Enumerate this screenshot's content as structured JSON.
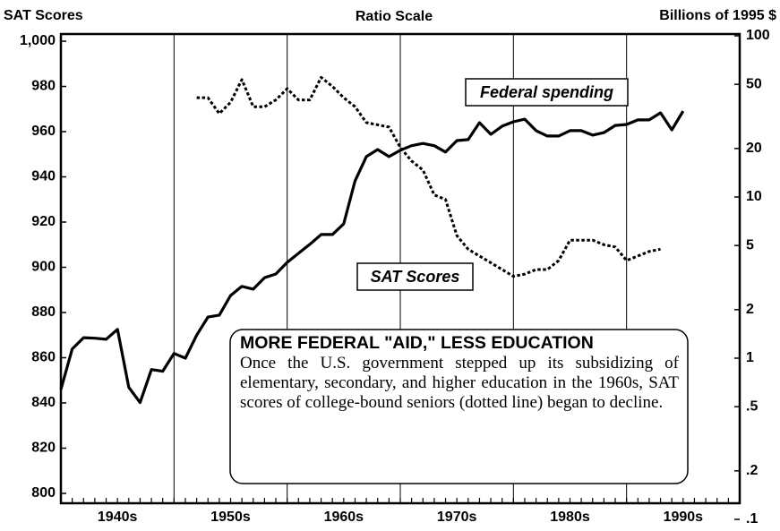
{
  "chart_data": {
    "type": "line",
    "left_axis_label": "SAT Scores",
    "subtitle": "Ratio Scale",
    "right_axis_label": "Billions of 1995 $",
    "xlim": [
      1940,
      2000
    ],
    "xticks": [
      {
        "value": 1940,
        "label": "1940s"
      },
      {
        "value": 1950,
        "label": "1950s"
      },
      {
        "value": 1960,
        "label": "1960s"
      },
      {
        "value": 1970,
        "label": "1970s"
      },
      {
        "value": 1980,
        "label": "1980s"
      },
      {
        "value": 1990,
        "label": "1990s"
      }
    ],
    "ylim": [
      800,
      1000
    ],
    "yticks": [
      800,
      820,
      840,
      860,
      880,
      900,
      920,
      940,
      960,
      980,
      {
        "value": 1000,
        "label": "1,000"
      }
    ],
    "y2lim": [
      0.1,
      100
    ],
    "y2log": true,
    "y2ticks": [
      {
        "value": 0.1,
        "label": ".1"
      },
      {
        "value": 0.2,
        "label": ".2"
      },
      {
        "value": 0.5,
        "label": ".5"
      },
      1,
      2,
      5,
      10,
      20,
      50,
      100
    ],
    "grid": "x",
    "series": [
      {
        "name": "SAT Scores",
        "color": "#000000",
        "dash": true,
        "x": [
          1952,
          1953,
          1954,
          1955,
          1956,
          1957,
          1958,
          1959,
          1960,
          1961,
          1962,
          1963,
          1964,
          1965,
          1966,
          1967,
          1968,
          1969,
          1970,
          1971,
          1972,
          1973,
          1974,
          1975,
          1976,
          1977,
          1978,
          1979,
          1980,
          1981,
          1982,
          1983,
          1984,
          1985,
          1986,
          1987,
          1988,
          1989,
          1990,
          1991,
          1992,
          1993
        ],
        "values": [
          975,
          975,
          968,
          973,
          983,
          971,
          971,
          974,
          979,
          974,
          974,
          984,
          980,
          975,
          971,
          964,
          963,
          962,
          953,
          947,
          943,
          932,
          930,
          914,
          908,
          905,
          902,
          899,
          896,
          897,
          899,
          899,
          903,
          912,
          912,
          912,
          910,
          909,
          903,
          905,
          907,
          908
        ]
      },
      {
        "name": "Federal spending",
        "color": "#000000",
        "axis": "y2",
        "x": [
          1940,
          1941,
          1942,
          1943,
          1944,
          1945,
          1946,
          1947,
          1948,
          1949,
          1950,
          1951,
          1952,
          1953,
          1954,
          1955,
          1956,
          1957,
          1958,
          1959,
          1960,
          1961,
          1962,
          1963,
          1964,
          1965,
          1966,
          1967,
          1968,
          1969,
          1970,
          1971,
          1972,
          1973,
          1974,
          1975,
          1976,
          1977,
          1978,
          1979,
          1980,
          1981,
          1982,
          1983,
          1984,
          1985,
          1986,
          1987,
          1988,
          1989,
          1990,
          1991,
          1992,
          1993,
          1994,
          1995
        ],
        "values": [
          0.64,
          1.14,
          1.34,
          1.33,
          1.31,
          1.51,
          0.66,
          0.53,
          0.85,
          0.83,
          1.07,
          1.0,
          1.39,
          1.8,
          1.85,
          2.45,
          2.79,
          2.68,
          3.16,
          3.33,
          3.93,
          4.47,
          5.08,
          5.85,
          5.85,
          6.81,
          12.6,
          17.8,
          19.7,
          17.8,
          19.5,
          20.8,
          21.5,
          20.8,
          19.0,
          22.4,
          22.7,
          28.9,
          24.5,
          27.5,
          29.3,
          30.4,
          25.8,
          23.9,
          23.9,
          25.8,
          25.8,
          24.2,
          25.1,
          27.8,
          28.2,
          30.1,
          30.1,
          33.3,
          26.1,
          34.1
        ]
      }
    ],
    "annotation": {
      "title": "MORE FEDERAL \"AID,\" LESS EDUCATION",
      "text": "Once the U.S. government stepped up its subsidizing of elementary, secondary, and higher education in the 1960s, SAT scores of college-bound seniors (dotted line) began to decline."
    }
  }
}
